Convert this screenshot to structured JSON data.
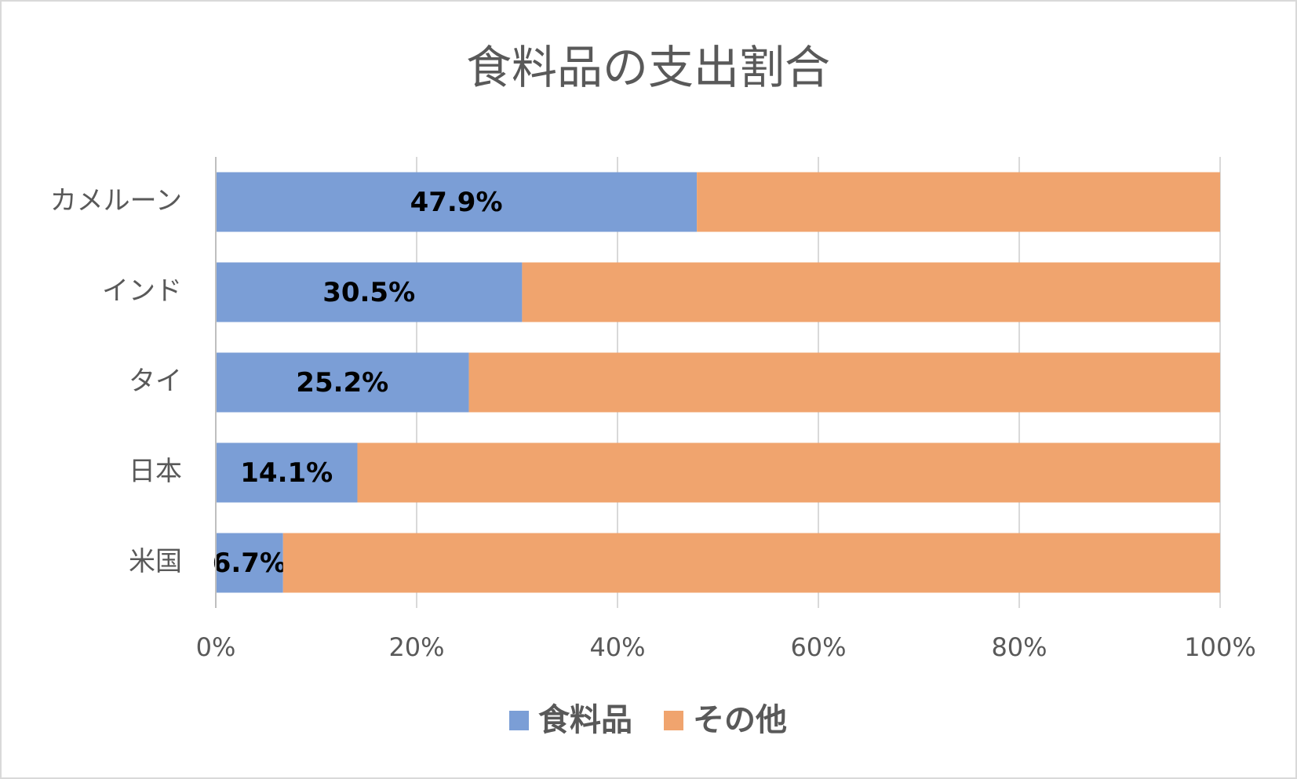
{
  "chart_data": {
    "type": "stacked-bar-horizontal",
    "title": "食料品の支出割合",
    "categories": [
      "カメルーン",
      "インド",
      "タイ",
      "日本",
      "米国"
    ],
    "series": [
      {
        "name": "食料品",
        "color": "#7b9ed6",
        "values": [
          47.9,
          30.5,
          25.2,
          14.1,
          6.7
        ],
        "value_labels": [
          "47.9%",
          "30.5%",
          "25.2%",
          "14.1%",
          "6.7%"
        ]
      },
      {
        "name": "その他",
        "color": "#f0a46e",
        "values": [
          52.1,
          69.5,
          74.8,
          85.9,
          93.3
        ]
      }
    ],
    "xlim": [
      0,
      100
    ],
    "xticks": [
      {
        "value": 0,
        "label": "0%"
      },
      {
        "value": 20,
        "label": "20%"
      },
      {
        "value": 40,
        "label": "40%"
      },
      {
        "value": 60,
        "label": "60%"
      },
      {
        "value": 80,
        "label": "80%"
      },
      {
        "value": 100,
        "label": "100%"
      }
    ],
    "grid": true,
    "legend": "bottom"
  }
}
